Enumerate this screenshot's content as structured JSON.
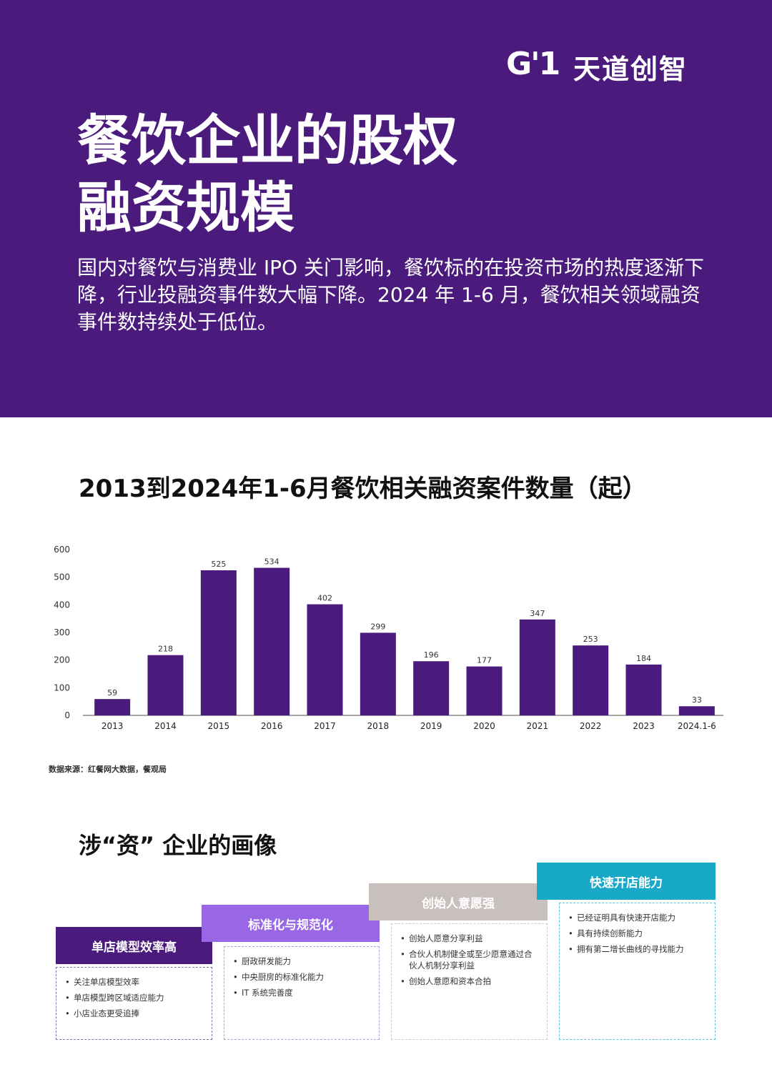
{
  "brand": {
    "mark": "G'1",
    "name": "天道创智"
  },
  "hero": {
    "title_line1": "餐饮企业的股权",
    "title_line2": "融资规模",
    "description": "国内对餐饮与消费业 IPO 关门影响，餐饮标的在投资市场的热度逐渐下降，行业投融资事件数大幅下降。2024 年 1-6 月，餐饮相关领域融资事件数持续处于低位。"
  },
  "chart_title": "2013到2024年1-6月餐饮相关融资案件数量（起）",
  "chart_data": {
    "type": "bar",
    "categories": [
      "2013",
      "2014",
      "2015",
      "2016",
      "2017",
      "2018",
      "2019",
      "2020",
      "2021",
      "2022",
      "2023",
      "2024.1-6"
    ],
    "values": [
      59,
      218,
      525,
      534,
      402,
      299,
      196,
      177,
      347,
      253,
      184,
      33
    ],
    "yticks": [
      0,
      100,
      200,
      300,
      400,
      500,
      600
    ],
    "ylim": [
      0,
      600
    ],
    "bar_color": "#4a1a7c",
    "grid": false
  },
  "source": "数据来源：红餐网大数据，餐观局",
  "section_title": "涉“资” 企业的画像",
  "cards": [
    {
      "title": "单店模型效率高",
      "color": "#4a1a7c",
      "border": "#8b6fb5",
      "items": [
        "关注单店模型效率",
        "单店模型跨区域适应能力",
        "小店业态更受追捧"
      ]
    },
    {
      "title": "标准化与规范化",
      "color": "#9966e6",
      "border": "#b89ae8",
      "items": [
        "厨政研发能力",
        "中央厨房的标准化能力",
        "IT 系统完善度"
      ]
    },
    {
      "title": "创始人意愿强",
      "color": "#c8c0bd",
      "border": "#cfcac8",
      "items": [
        "创始人愿意分享利益",
        "合伙人机制健全或至少愿意通过合伙人机制分享利益",
        "创始人意愿和资本合拍"
      ]
    },
    {
      "title": "快速开店能力",
      "color": "#17a9c6",
      "border": "#5cc3d8",
      "items": [
        "已经证明具有快速开店能力",
        "具有持续创新能力",
        "拥有第二增长曲线的寻找能力"
      ]
    }
  ]
}
